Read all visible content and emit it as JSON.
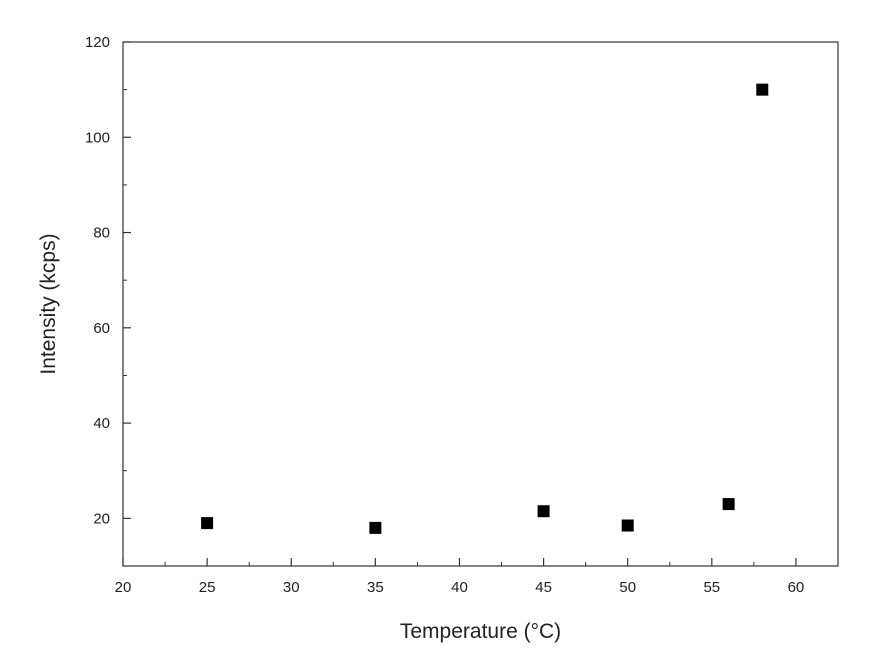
{
  "chart_data": {
    "type": "scatter",
    "title": "",
    "xlabel": "Temperature (°C)",
    "ylabel": "Intensity (kcps)",
    "xlim": [
      20,
      62.5
    ],
    "ylim": [
      10,
      120
    ],
    "x_ticks": [
      20,
      25,
      30,
      35,
      40,
      45,
      50,
      55,
      60
    ],
    "y_ticks": [
      20,
      40,
      60,
      80,
      100,
      120
    ],
    "grid": false,
    "legend": "none",
    "marker": "square",
    "marker_color": "#000000",
    "series": [
      {
        "points": [
          {
            "x": 25,
            "y": 19.0
          },
          {
            "x": 35,
            "y": 18.0
          },
          {
            "x": 45,
            "y": 21.5
          },
          {
            "x": 50,
            "y": 18.5
          },
          {
            "x": 56,
            "y": 23.0
          },
          {
            "x": 58,
            "y": 110.0
          }
        ]
      }
    ]
  }
}
